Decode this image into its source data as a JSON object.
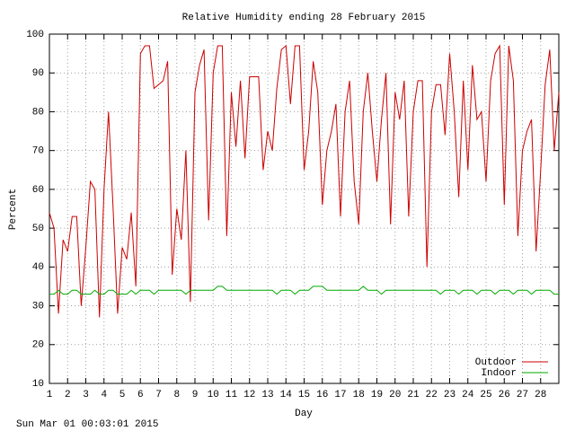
{
  "chart_data": {
    "type": "line",
    "title": "Relative Humidity ending 28 February 2015",
    "xlabel": "Day",
    "ylabel": "Percent",
    "footer": "Sun Mar 01 00:03:01 2015",
    "x": [
      1,
      1.25,
      1.5,
      1.75,
      2,
      2.25,
      2.5,
      2.75,
      3,
      3.25,
      3.5,
      3.75,
      4,
      4.25,
      4.5,
      4.75,
      5,
      5.25,
      5.5,
      5.75,
      6,
      6.25,
      6.5,
      6.75,
      7,
      7.25,
      7.5,
      7.75,
      8,
      8.25,
      8.5,
      8.75,
      9,
      9.25,
      9.5,
      9.75,
      10,
      10.25,
      10.5,
      10.75,
      11,
      11.25,
      11.5,
      11.75,
      12,
      12.25,
      12.5,
      12.75,
      13,
      13.25,
      13.5,
      13.75,
      14,
      14.25,
      14.5,
      14.75,
      15,
      15.25,
      15.5,
      15.75,
      16,
      16.25,
      16.5,
      16.75,
      17,
      17.25,
      17.5,
      17.75,
      18,
      18.25,
      18.5,
      18.75,
      19,
      19.25,
      19.5,
      19.75,
      20,
      20.25,
      20.5,
      20.75,
      21,
      21.25,
      21.5,
      21.75,
      22,
      22.25,
      22.5,
      22.75,
      23,
      23.25,
      23.5,
      23.75,
      24,
      24.25,
      24.5,
      24.75,
      25,
      25.25,
      25.5,
      25.75,
      26,
      26.25,
      26.5,
      26.75,
      27,
      27.25,
      27.5,
      27.75,
      28,
      28.25,
      28.5,
      28.75,
      29
    ],
    "series": [
      {
        "name": "Outdoor",
        "color": "#cc0000",
        "values": [
          54,
          50,
          28,
          47,
          44,
          53,
          53,
          30,
          45,
          62,
          60,
          27,
          60,
          80,
          55,
          28,
          45,
          42,
          54,
          35,
          95,
          97,
          97,
          86,
          87,
          88,
          93,
          38,
          55,
          47,
          70,
          31,
          85,
          92,
          96,
          52,
          90,
          97,
          97,
          48,
          85,
          71,
          88,
          68,
          89,
          89,
          89,
          65,
          75,
          70,
          86,
          96,
          97,
          82,
          97,
          97,
          65,
          75,
          93,
          85,
          56,
          70,
          75,
          82,
          53,
          80,
          88,
          62,
          51,
          80,
          90,
          75,
          62,
          78,
          90,
          51,
          85,
          78,
          88,
          53,
          80,
          88,
          88,
          40,
          80,
          87,
          87,
          74,
          95,
          80,
          58,
          88,
          65,
          92,
          78,
          80,
          62,
          88,
          95,
          97,
          56,
          97,
          88,
          48,
          70,
          75,
          78,
          44,
          65,
          87,
          96,
          70,
          85
        ]
      },
      {
        "name": "Indoor",
        "color": "#00aa00",
        "values": [
          33,
          33,
          34,
          33,
          33,
          34,
          34,
          33,
          33,
          33,
          34,
          33,
          33,
          34,
          34,
          33,
          33,
          33,
          34,
          33,
          34,
          34,
          34,
          33,
          34,
          34,
          34,
          34,
          34,
          34,
          33,
          34,
          34,
          34,
          34,
          34,
          34,
          35,
          35,
          34,
          34,
          34,
          34,
          34,
          34,
          34,
          34,
          34,
          34,
          34,
          33,
          34,
          34,
          34,
          33,
          34,
          34,
          34,
          35,
          35,
          35,
          34,
          34,
          34,
          34,
          34,
          34,
          34,
          34,
          35,
          34,
          34,
          34,
          33,
          34,
          34,
          34,
          34,
          34,
          34,
          34,
          34,
          34,
          34,
          34,
          34,
          33,
          34,
          34,
          34,
          33,
          34,
          34,
          34,
          33,
          34,
          34,
          34,
          33,
          34,
          34,
          34,
          33,
          34,
          34,
          34,
          33,
          34,
          34,
          34,
          34,
          33,
          33
        ]
      }
    ],
    "xlim": [
      1,
      29
    ],
    "xticks": [
      1,
      2,
      3,
      4,
      5,
      6,
      7,
      8,
      9,
      10,
      11,
      12,
      13,
      14,
      15,
      16,
      17,
      18,
      19,
      20,
      21,
      22,
      23,
      24,
      25,
      26,
      27,
      28
    ],
    "ylim": [
      10,
      100
    ],
    "yticks": [
      10,
      20,
      30,
      40,
      50,
      60,
      70,
      80,
      90,
      100
    ],
    "grid": true,
    "legend": "lower right"
  }
}
